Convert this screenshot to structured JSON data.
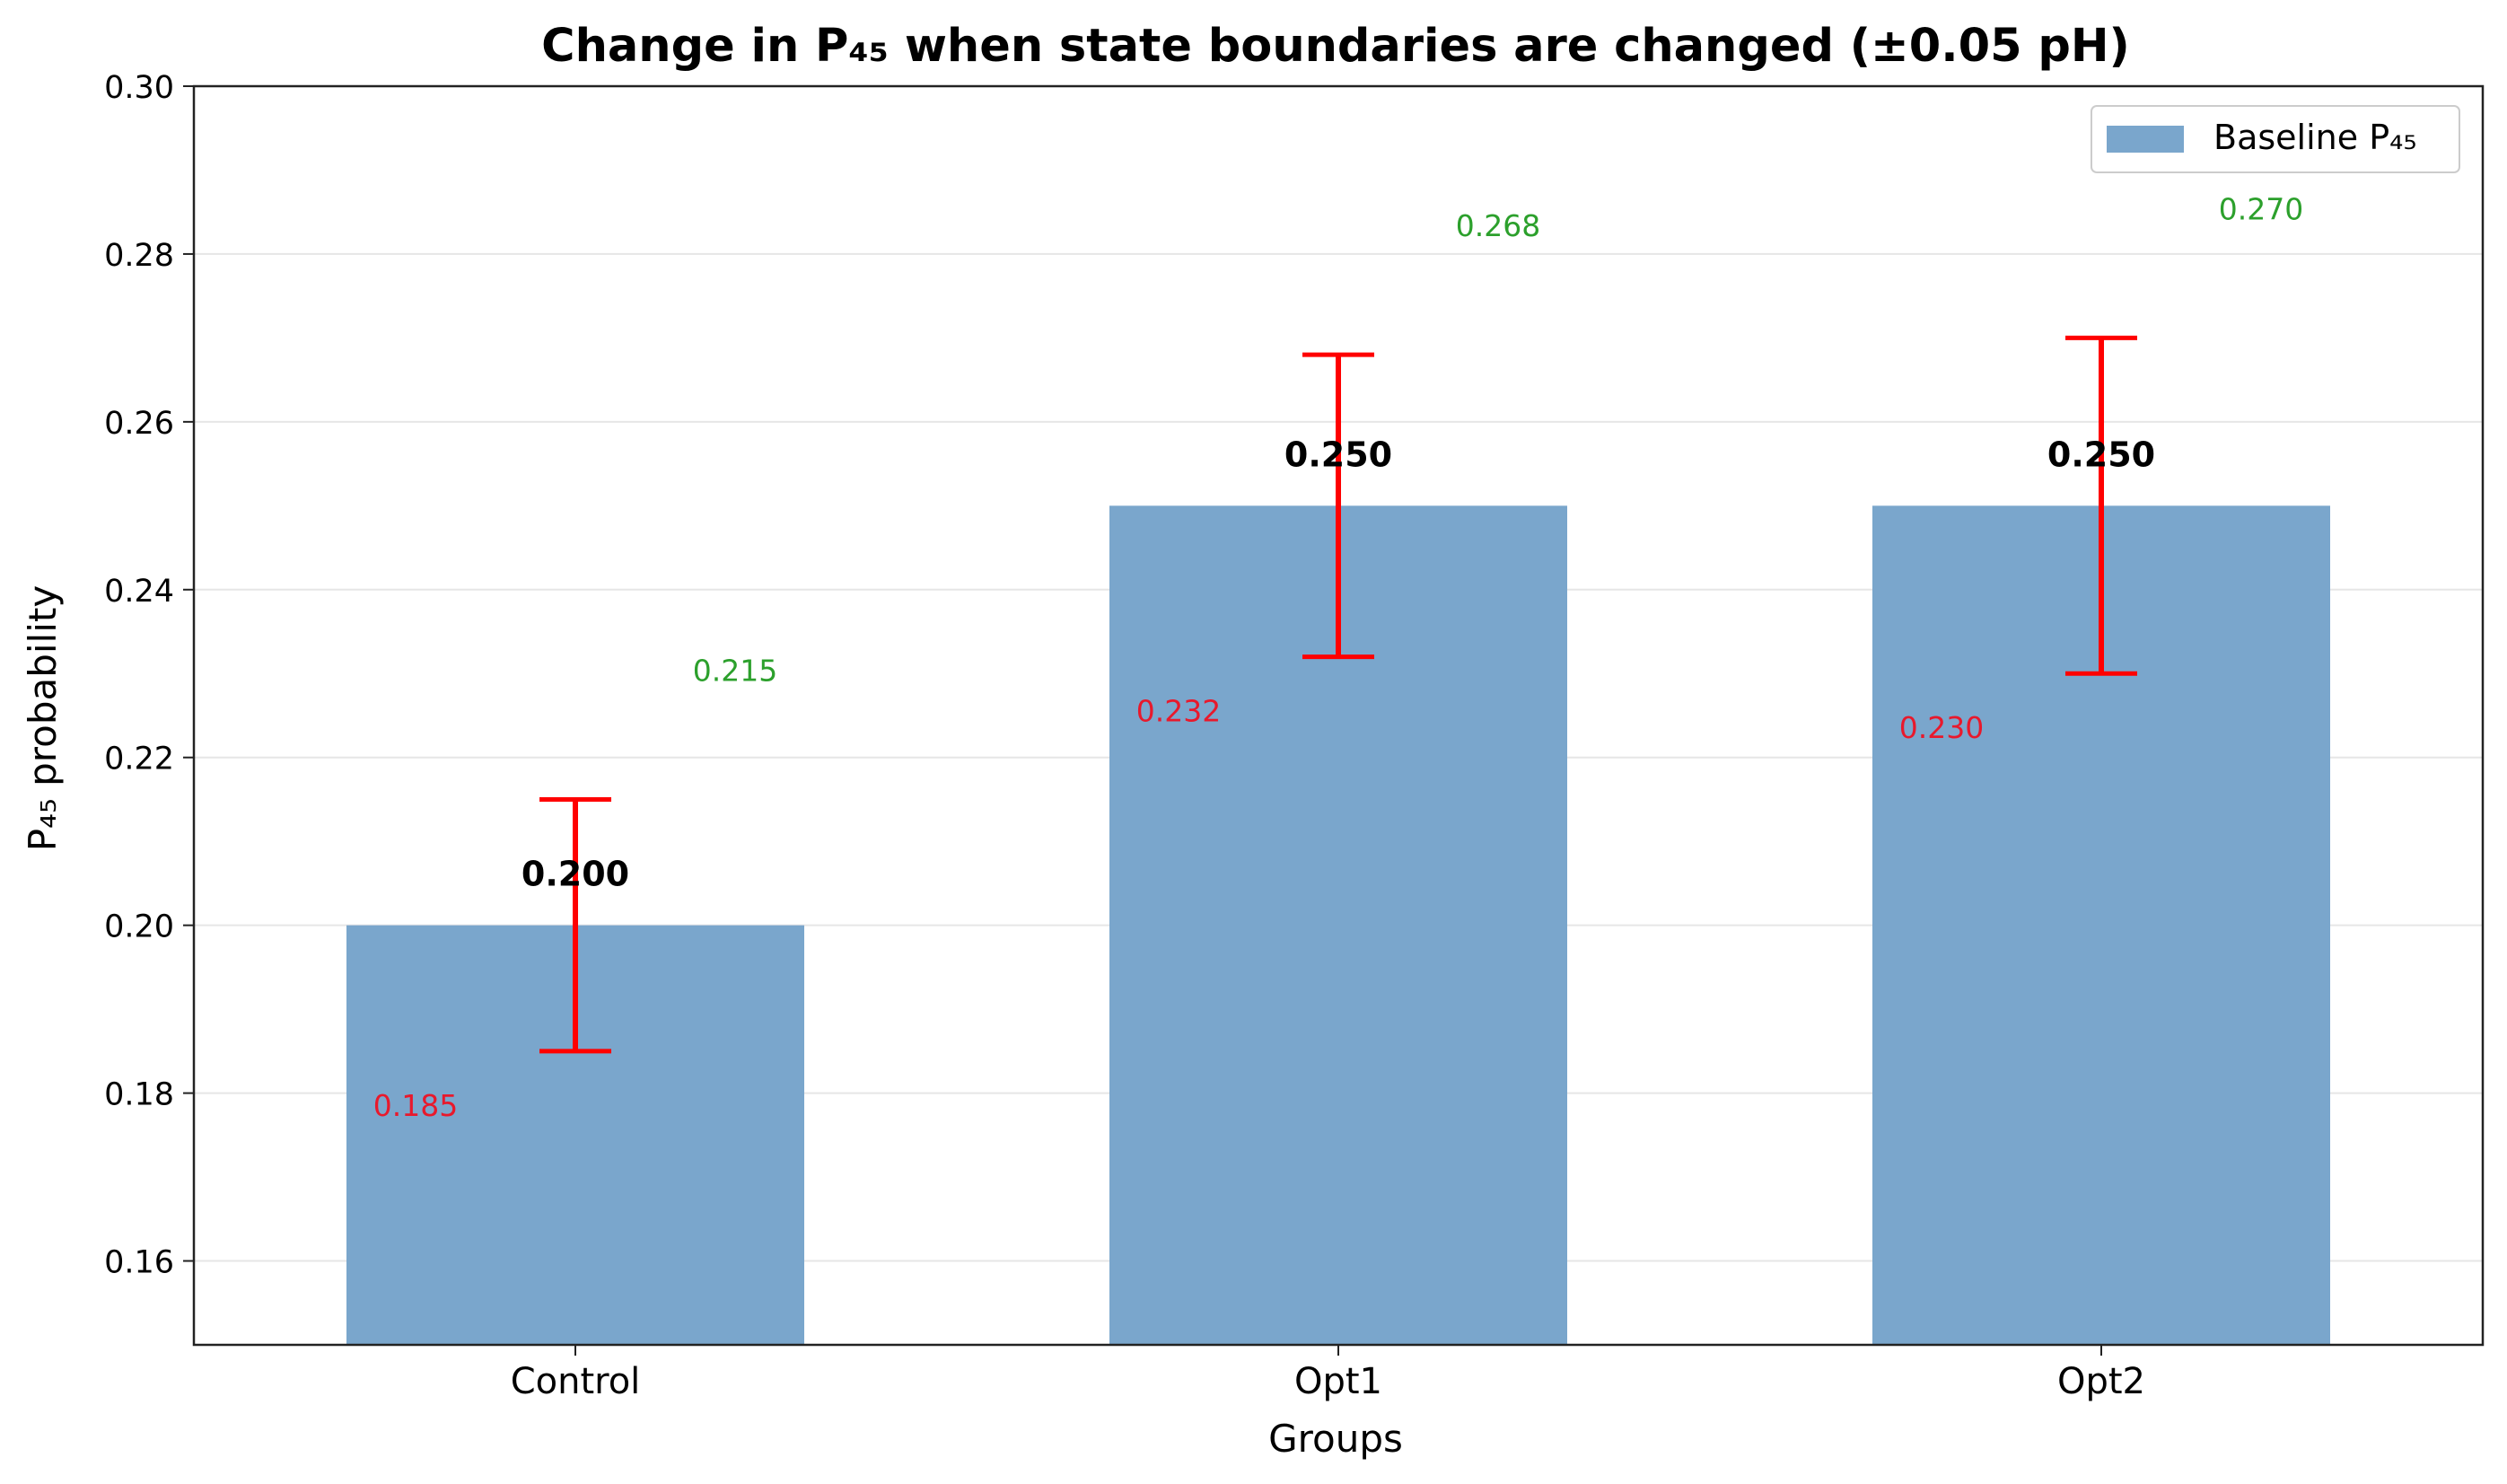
{
  "chart_data": {
    "type": "bar",
    "title": "Change in P₄₅ when state boundaries are changed (±0.05 pH)",
    "xlabel": "Groups",
    "ylabel": "P₄₅ probability",
    "ylim": [
      0.15,
      0.3
    ],
    "yticks": [
      "0.16",
      "0.18",
      "0.20",
      "0.22",
      "0.24",
      "0.26",
      "0.28",
      "0.30"
    ],
    "grid": "horizontal",
    "legend": {
      "position": "top-right",
      "entries": [
        "Baseline P₄₅"
      ]
    },
    "categories": [
      "Control",
      "Opt1",
      "Opt2"
    ],
    "series": [
      {
        "name": "Baseline P₄₅",
        "values": [
          0.2,
          0.25,
          0.25
        ],
        "value_labels": [
          "0.200",
          "0.250",
          "0.250"
        ]
      }
    ],
    "error_low": [
      0.185,
      0.232,
      0.23
    ],
    "error_high": [
      0.215,
      0.268,
      0.27
    ],
    "error_low_labels": [
      "0.185",
      "0.232",
      "0.230"
    ],
    "error_high_labels": [
      "0.215",
      "0.268",
      "0.270"
    ],
    "colors": {
      "bar": "#7aa6cc",
      "error_bar": "#ff0000",
      "low_label": "#e8192c",
      "high_label": "#2ca02c",
      "grid": "#e6e6e6"
    }
  }
}
